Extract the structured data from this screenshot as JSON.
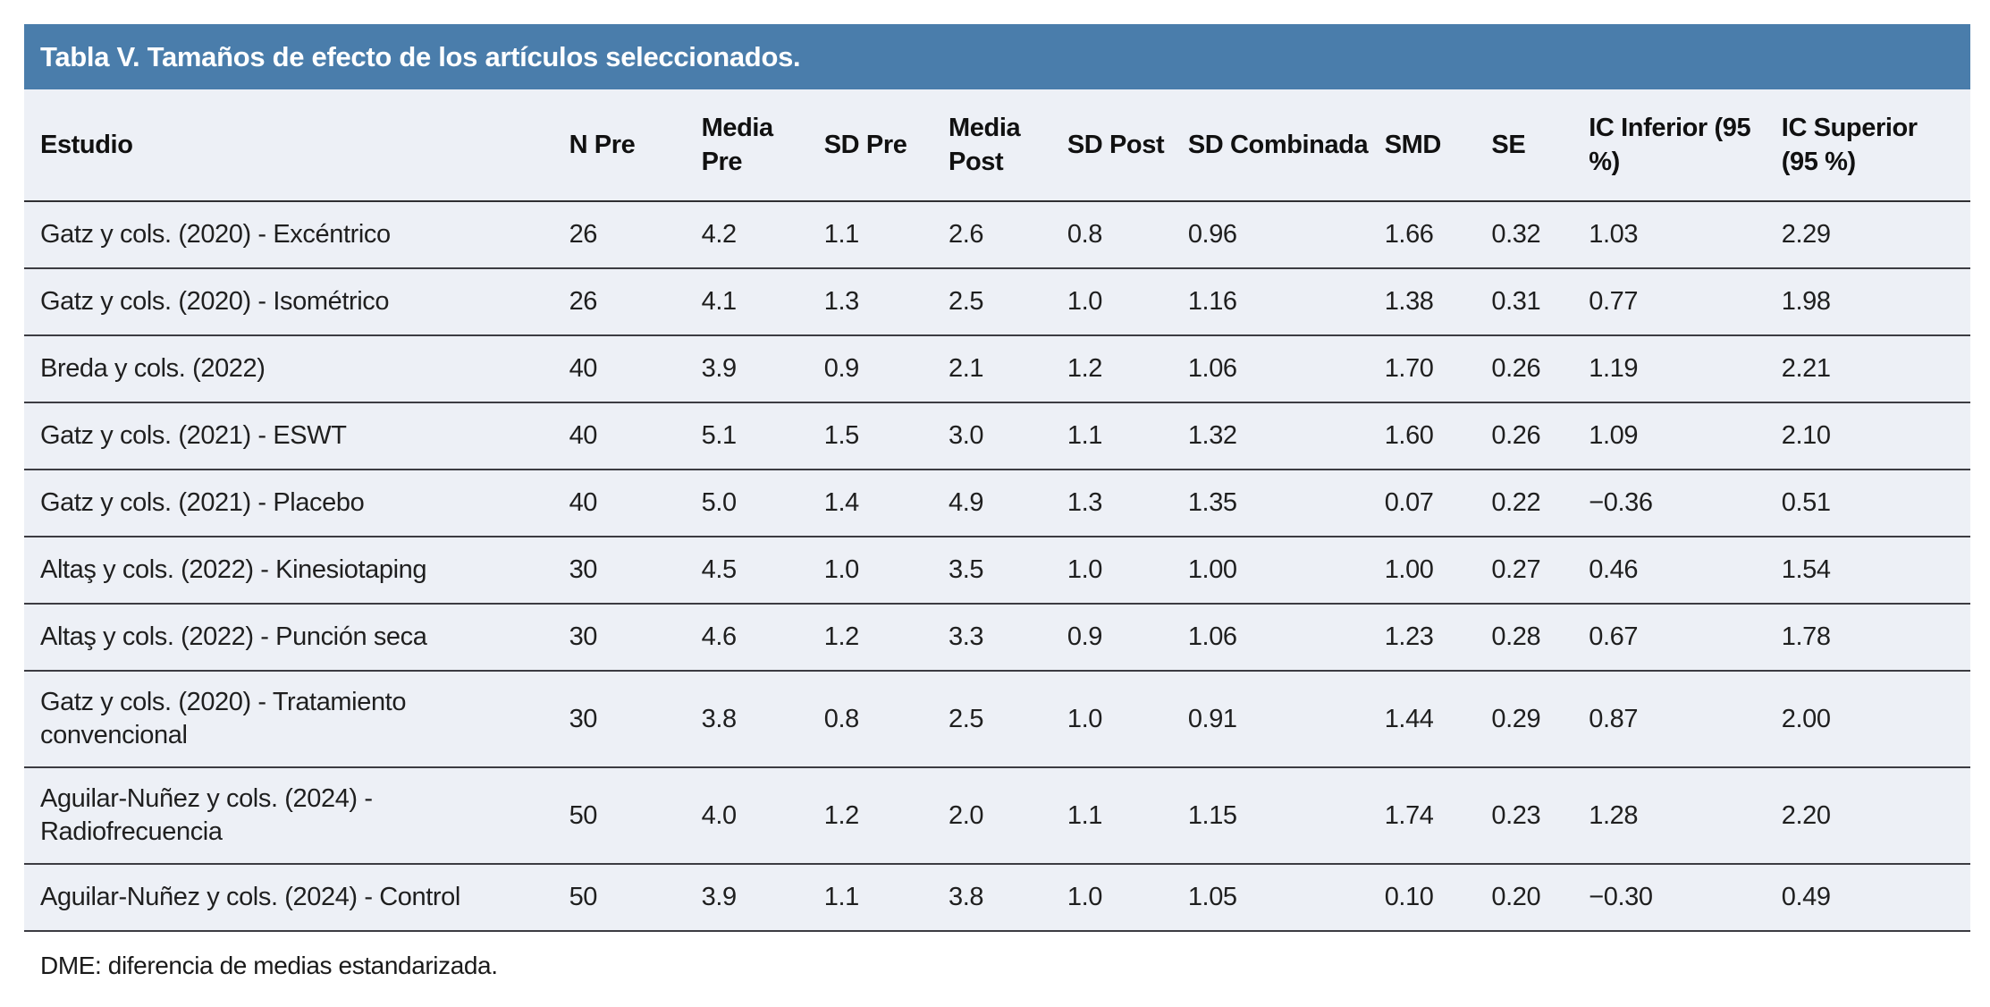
{
  "table": {
    "title": "Tabla V. Tamaños de efecto de los artículos seleccionados.",
    "columns": [
      "Estudio",
      "N Pre",
      "Media Pre",
      "SD Pre",
      "Media Post",
      "SD Post",
      "SD Combinada",
      "SMD",
      "SE",
      "IC Inferior (95 %)",
      "IC Superior (95 %)"
    ],
    "rows": [
      [
        "Gatz y cols. (2020) - Excéntrico",
        "26",
        "4.2",
        "1.1",
        "2.6",
        "0.8",
        "0.96",
        "1.66",
        "0.32",
        "1.03",
        "2.29"
      ],
      [
        "Gatz y cols. (2020) - Isométrico",
        "26",
        "4.1",
        "1.3",
        "2.5",
        "1.0",
        "1.16",
        "1.38",
        "0.31",
        "0.77",
        "1.98"
      ],
      [
        "Breda y cols. (2022)",
        "40",
        "3.9",
        "0.9",
        "2.1",
        "1.2",
        "1.06",
        "1.70",
        "0.26",
        "1.19",
        "2.21"
      ],
      [
        "Gatz y cols. (2021) - ESWT",
        "40",
        "5.1",
        "1.5",
        "3.0",
        "1.1",
        "1.32",
        "1.60",
        "0.26",
        "1.09",
        "2.10"
      ],
      [
        "Gatz y cols. (2021) - Placebo",
        "40",
        "5.0",
        "1.4",
        "4.9",
        "1.3",
        "1.35",
        "0.07",
        "0.22",
        "−0.36",
        "0.51"
      ],
      [
        "Altaş y cols. (2022) - Kinesiotaping",
        "30",
        "4.5",
        "1.0",
        "3.5",
        "1.0",
        "1.00",
        "1.00",
        "0.27",
        "0.46",
        "1.54"
      ],
      [
        "Altaş y cols. (2022) - Punción seca",
        "30",
        "4.6",
        "1.2",
        "3.3",
        "0.9",
        "1.06",
        "1.23",
        "0.28",
        "0.67",
        "1.78"
      ],
      [
        "Gatz y cols. (2020) - Tratamiento convencional",
        "30",
        "3.8",
        "0.8",
        "2.5",
        "1.0",
        "0.91",
        "1.44",
        "0.29",
        "0.87",
        "2.00"
      ],
      [
        "Aguilar-Nuñez y cols. (2024) - Radiofrecuencia",
        "50",
        "4.0",
        "1.2",
        "2.0",
        "1.1",
        "1.15",
        "1.74",
        "0.23",
        "1.28",
        "2.20"
      ],
      [
        "Aguilar-Nuñez y cols. (2024) - Control",
        "50",
        "3.9",
        "1.1",
        "3.8",
        "1.0",
        "1.05",
        "0.10",
        "0.20",
        "−0.30",
        "0.49"
      ]
    ],
    "footnote": "DME: diferencia de medias estandarizada.",
    "colors": {
      "title_bar_bg": "#4a7dab",
      "title_text": "#ffffff",
      "body_bg": "#edf0f6",
      "row_border": "#3c3c42",
      "text": "#1a1a1a"
    },
    "column_widths_pct": [
      28.0,
      6.8,
      6.3,
      6.4,
      6.1,
      6.2,
      10.1,
      5.5,
      5.0,
      9.9,
      9.7
    ]
  }
}
